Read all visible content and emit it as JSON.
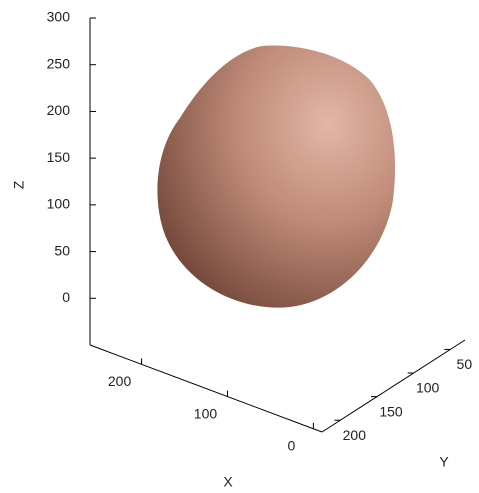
{
  "chart_data": {
    "type": "surface3d",
    "xlabel": "X",
    "ylabel": "Y",
    "zlabel": "Z",
    "xlim": [
      -10,
      260
    ],
    "xticks": [
      0,
      100,
      200
    ],
    "ylim": [
      30,
      225
    ],
    "yticks": [
      50,
      100,
      150,
      200
    ],
    "zlim": [
      -50,
      300
    ],
    "zticks": [
      0,
      50,
      100,
      150,
      200,
      250,
      300
    ],
    "surface_color": "#c08a78",
    "shade_color": "#6e4436",
    "highlight_color": "#e2b7a6"
  }
}
